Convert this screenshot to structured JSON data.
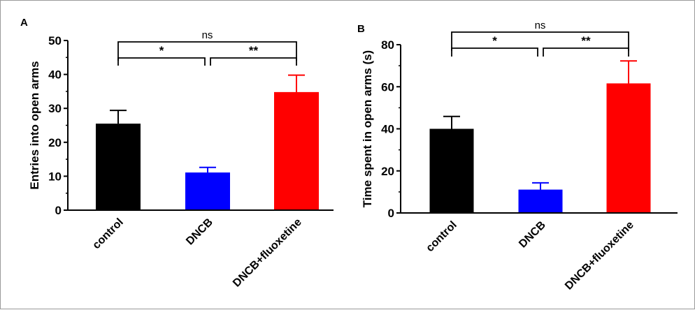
{
  "chart_data": [
    {
      "type": "bar",
      "panel_label": "A",
      "categories": [
        "control",
        "DNCB",
        "DNCB+fluoxetine"
      ],
      "values": [
        25.5,
        11.1,
        34.8
      ],
      "error_upper": [
        29.4,
        12.6,
        39.8
      ],
      "colors": [
        "#000000",
        "#0000ff",
        "#ff0000"
      ],
      "ylabel": "Entries into open arms",
      "xlabel": "",
      "ylim": [
        0,
        50
      ],
      "yticks": [
        "0",
        "10",
        "20",
        "30",
        "40",
        "50"
      ],
      "annotations": [
        {
          "from": 0,
          "to": 1,
          "label": "*"
        },
        {
          "from": 1,
          "to": 2,
          "label": "**"
        },
        {
          "from": 0,
          "to": 2,
          "label": "ns"
        }
      ],
      "grid": false
    },
    {
      "type": "bar",
      "panel_label": "B",
      "categories": [
        "control",
        "DNCB",
        "DNCB+fluoxetine"
      ],
      "values": [
        40.0,
        11.1,
        61.6
      ],
      "error_upper": [
        45.9,
        14.3,
        72.3
      ],
      "colors": [
        "#000000",
        "#0000ff",
        "#ff0000"
      ],
      "ylabel": "Time spent in open arms (s)",
      "xlabel": "",
      "ylim": [
        0,
        80
      ],
      "yticks": [
        "0",
        "20",
        "40",
        "60",
        "80"
      ],
      "annotations": [
        {
          "from": 0,
          "to": 1,
          "label": "*"
        },
        {
          "from": 1,
          "to": 2,
          "label": "**"
        },
        {
          "from": 0,
          "to": 2,
          "label": "ns"
        }
      ],
      "grid": false
    }
  ]
}
